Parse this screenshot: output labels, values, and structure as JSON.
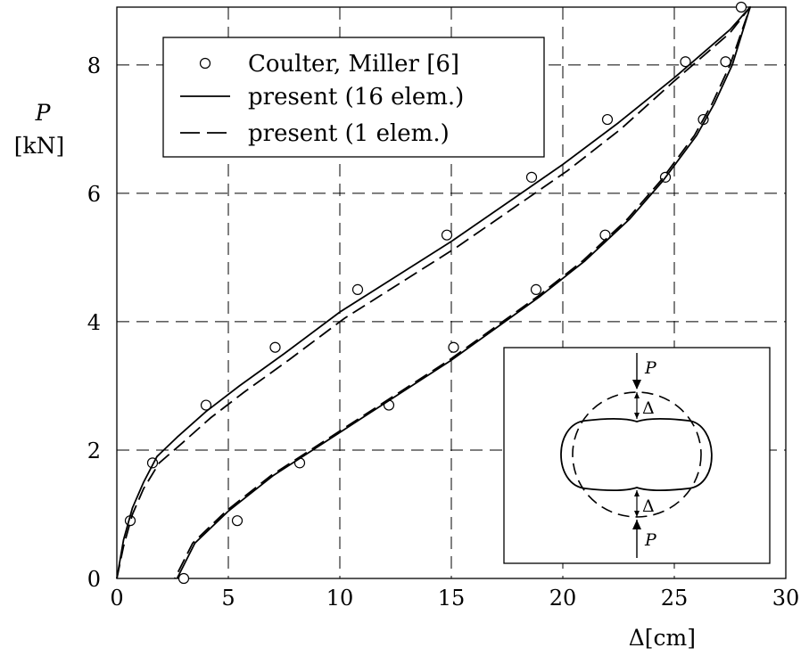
{
  "chart_data": {
    "type": "line",
    "title": "",
    "xlabel": "Δ[cm]",
    "ylabel_symbol": "P",
    "ylabel_unit": "[kN]",
    "xlim": [
      0,
      30
    ],
    "ylim": [
      0,
      8.9
    ],
    "xticks": [
      0,
      5,
      10,
      15,
      20,
      25,
      30
    ],
    "yticks": [
      0,
      2,
      4,
      6,
      8
    ],
    "xtick_labels": [
      "0",
      "5",
      "10",
      "15",
      "20",
      "25",
      "30"
    ],
    "ytick_labels": [
      "0",
      "2",
      "4",
      "6",
      "8"
    ],
    "grid": true,
    "legend_position": "top-left",
    "series": [
      {
        "name": "Coulter, Miller [6]",
        "style": "markers",
        "x": [
          0.6,
          1.6,
          4.0,
          7.1,
          10.8,
          14.8,
          18.6,
          22.0,
          25.5,
          28.0,
          27.3,
          26.3,
          24.6,
          21.9,
          18.8,
          15.1,
          12.2,
          8.2,
          5.4,
          3.0
        ],
        "y": [
          0.9,
          1.8,
          2.7,
          3.6,
          4.5,
          5.35,
          6.25,
          7.15,
          8.05,
          8.9,
          8.05,
          7.15,
          6.25,
          5.35,
          4.5,
          3.6,
          2.7,
          1.8,
          0.9,
          0.0
        ]
      },
      {
        "name": "present (16 elem.)",
        "style": "solid",
        "x": [
          0.0,
          0.3,
          0.7,
          1.2,
          1.8,
          2.7,
          4.0,
          5.5,
          7.5,
          10.0,
          12.5,
          15.0,
          17.5,
          20.0,
          22.5,
          25.0,
          26.5,
          27.5,
          28.4,
          27.6,
          26.8,
          26.0,
          24.5,
          23.0,
          21.0,
          19.0,
          17.0,
          15.0,
          13.0,
          11.0,
          9.0,
          7.0,
          5.0,
          3.5,
          2.7
        ],
        "y": [
          0.0,
          0.6,
          1.1,
          1.5,
          1.9,
          2.2,
          2.6,
          3.0,
          3.5,
          4.15,
          4.7,
          5.25,
          5.85,
          6.45,
          7.1,
          7.8,
          8.25,
          8.55,
          8.9,
          8.0,
          7.4,
          6.9,
          6.2,
          5.6,
          4.95,
          4.4,
          3.9,
          3.4,
          2.95,
          2.5,
          2.05,
          1.6,
          1.05,
          0.55,
          0.0
        ]
      },
      {
        "name": "present (1 elem.)",
        "style": "dashed",
        "x": [
          0.0,
          0.3,
          0.7,
          1.2,
          1.9,
          2.9,
          4.2,
          5.7,
          7.7,
          10.2,
          12.7,
          15.2,
          17.7,
          20.2,
          22.6,
          25.0,
          26.5,
          27.5,
          28.4,
          27.5,
          26.7,
          25.9,
          24.4,
          22.9,
          20.9,
          18.9,
          16.9,
          14.9,
          12.9,
          10.9,
          8.9,
          6.9,
          4.9,
          3.4,
          2.6
        ],
        "y": [
          0.0,
          0.5,
          1.0,
          1.4,
          1.8,
          2.1,
          2.5,
          2.9,
          3.4,
          4.05,
          4.6,
          5.15,
          5.75,
          6.35,
          7.0,
          7.75,
          8.2,
          8.5,
          8.9,
          8.0,
          7.4,
          6.9,
          6.2,
          5.6,
          4.95,
          4.4,
          3.9,
          3.4,
          2.95,
          2.5,
          2.05,
          1.6,
          1.05,
          0.55,
          0.0
        ]
      }
    ],
    "inset": {
      "load_label": "P",
      "displacement_label": "Δ"
    }
  },
  "colors": {
    "ink": "#000000",
    "grid": "#000000",
    "background": "#ffffff"
  }
}
